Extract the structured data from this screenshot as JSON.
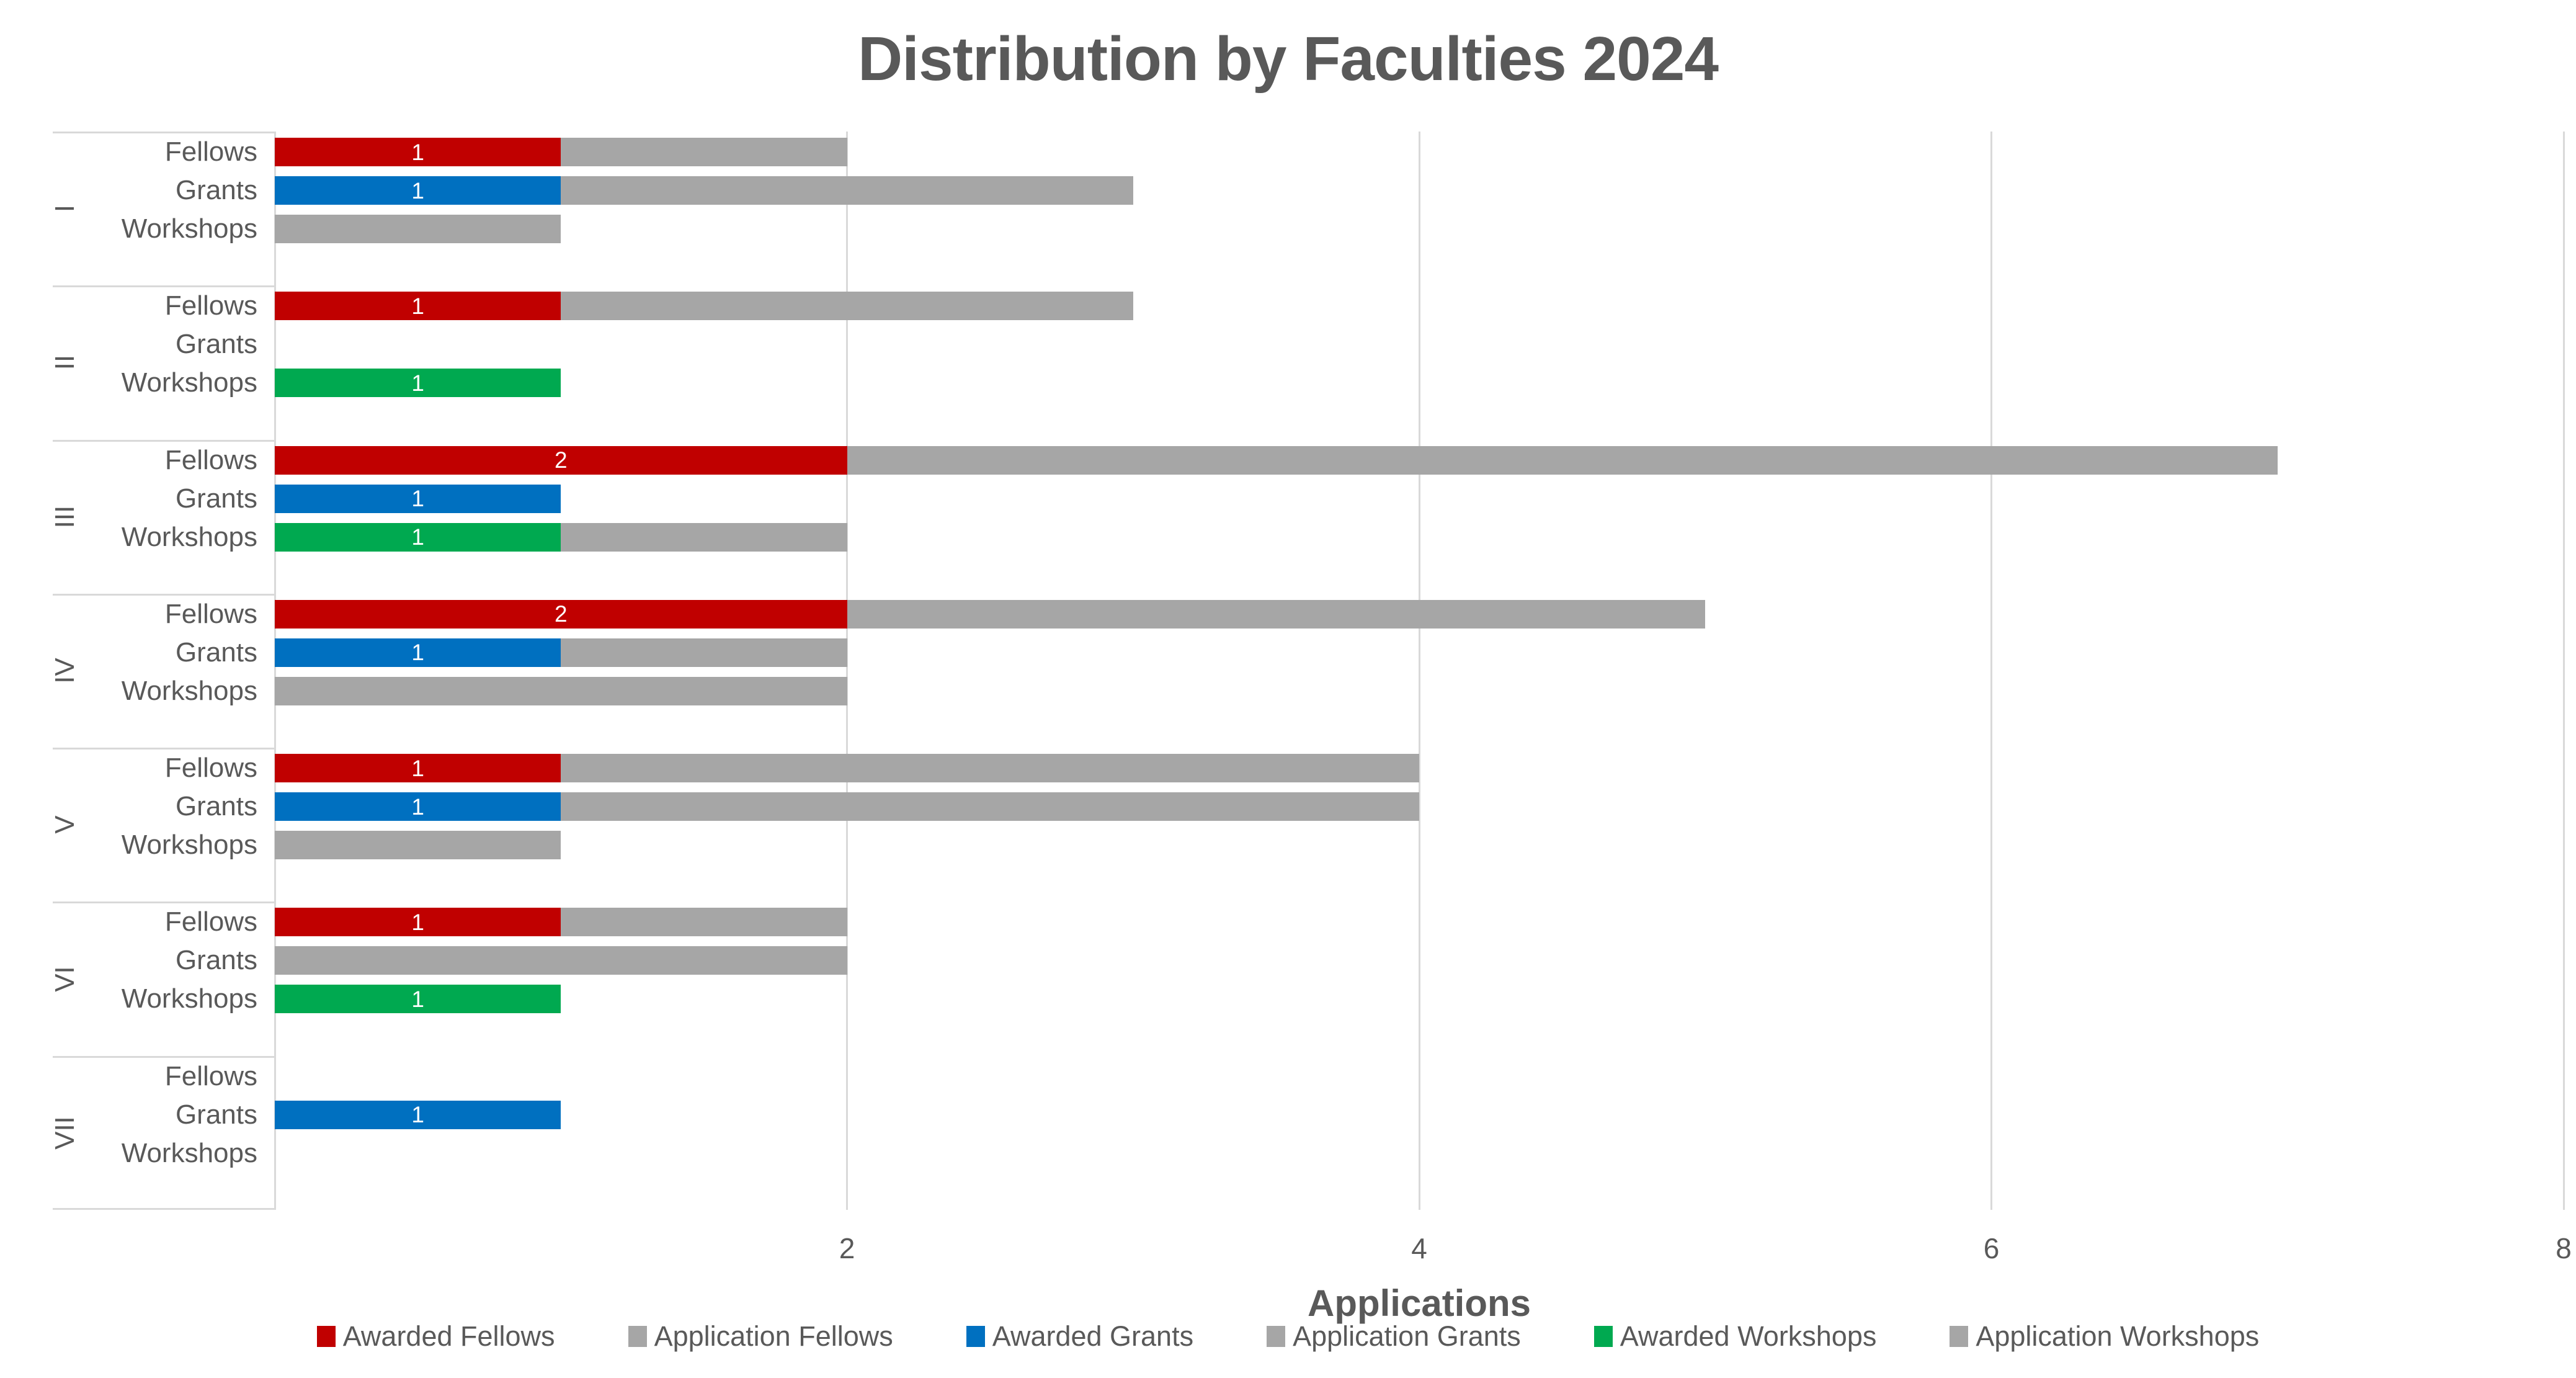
{
  "chart_data": {
    "type": "bar",
    "orientation": "horizontal-stacked",
    "title": "Distribution by Faculties 2024",
    "xlabel": "Applications",
    "xlim": [
      0,
      8
    ],
    "xticks": [
      2,
      4,
      6,
      8
    ],
    "grid": true,
    "legend_position": "bottom",
    "colors": {
      "awarded_fellows": "#c00000",
      "awarded_grants": "#0070c0",
      "awarded_workshops": "#00a950",
      "application": "#a6a6a6",
      "gridline": "#d9d9d9",
      "text": "#595959"
    },
    "category_color_keys": {
      "Fellows": "awarded_fellows",
      "Grants": "awarded_grants",
      "Workshops": "awarded_workshops"
    },
    "legend": [
      {
        "label": "Awarded Fellows",
        "color_key": "awarded_fellows"
      },
      {
        "label": "Application Fellows",
        "color_key": "application"
      },
      {
        "label": "Awarded Grants",
        "color_key": "awarded_grants"
      },
      {
        "label": "Application Grants",
        "color_key": "application"
      },
      {
        "label": "Awarded Workshops",
        "color_key": "awarded_workshops"
      },
      {
        "label": "Application Workshops",
        "color_key": "application"
      }
    ],
    "groups": [
      {
        "faculty": "I",
        "rows": [
          {
            "category": "Fellows",
            "awarded": 1,
            "application": 1,
            "label": "1"
          },
          {
            "category": "Grants",
            "awarded": 1,
            "application": 2,
            "label": "1"
          },
          {
            "category": "Workshops",
            "awarded": 0,
            "application": 1,
            "label": ""
          }
        ]
      },
      {
        "faculty": "II",
        "rows": [
          {
            "category": "Fellows",
            "awarded": 1,
            "application": 2,
            "label": "1"
          },
          {
            "category": "Grants",
            "awarded": 0,
            "application": 0,
            "label": ""
          },
          {
            "category": "Workshops",
            "awarded": 1,
            "application": 0,
            "label": "1"
          }
        ]
      },
      {
        "faculty": "III",
        "rows": [
          {
            "category": "Fellows",
            "awarded": 2,
            "application": 5,
            "label": "2"
          },
          {
            "category": "Grants",
            "awarded": 1,
            "application": 0,
            "label": "1"
          },
          {
            "category": "Workshops",
            "awarded": 1,
            "application": 1,
            "label": "1"
          }
        ]
      },
      {
        "faculty": "IV",
        "rows": [
          {
            "category": "Fellows",
            "awarded": 2,
            "application": 3,
            "label": "2"
          },
          {
            "category": "Grants",
            "awarded": 1,
            "application": 1,
            "label": "1"
          },
          {
            "category": "Workshops",
            "awarded": 0,
            "application": 2,
            "label": ""
          }
        ]
      },
      {
        "faculty": "V",
        "rows": [
          {
            "category": "Fellows",
            "awarded": 1,
            "application": 3,
            "label": "1"
          },
          {
            "category": "Grants",
            "awarded": 1,
            "application": 3,
            "label": "1"
          },
          {
            "category": "Workshops",
            "awarded": 0,
            "application": 1,
            "label": ""
          }
        ]
      },
      {
        "faculty": "VI",
        "rows": [
          {
            "category": "Fellows",
            "awarded": 1,
            "application": 1,
            "label": "1"
          },
          {
            "category": "Grants",
            "awarded": 0,
            "application": 2,
            "label": ""
          },
          {
            "category": "Workshops",
            "awarded": 1,
            "application": 0,
            "label": "1"
          }
        ]
      },
      {
        "faculty": "VII",
        "rows": [
          {
            "category": "Fellows",
            "awarded": 0,
            "application": 0,
            "label": ""
          },
          {
            "category": "Grants",
            "awarded": 1,
            "application": 0,
            "label": "1"
          },
          {
            "category": "Workshops",
            "awarded": 0,
            "application": 0,
            "label": ""
          }
        ]
      }
    ]
  }
}
